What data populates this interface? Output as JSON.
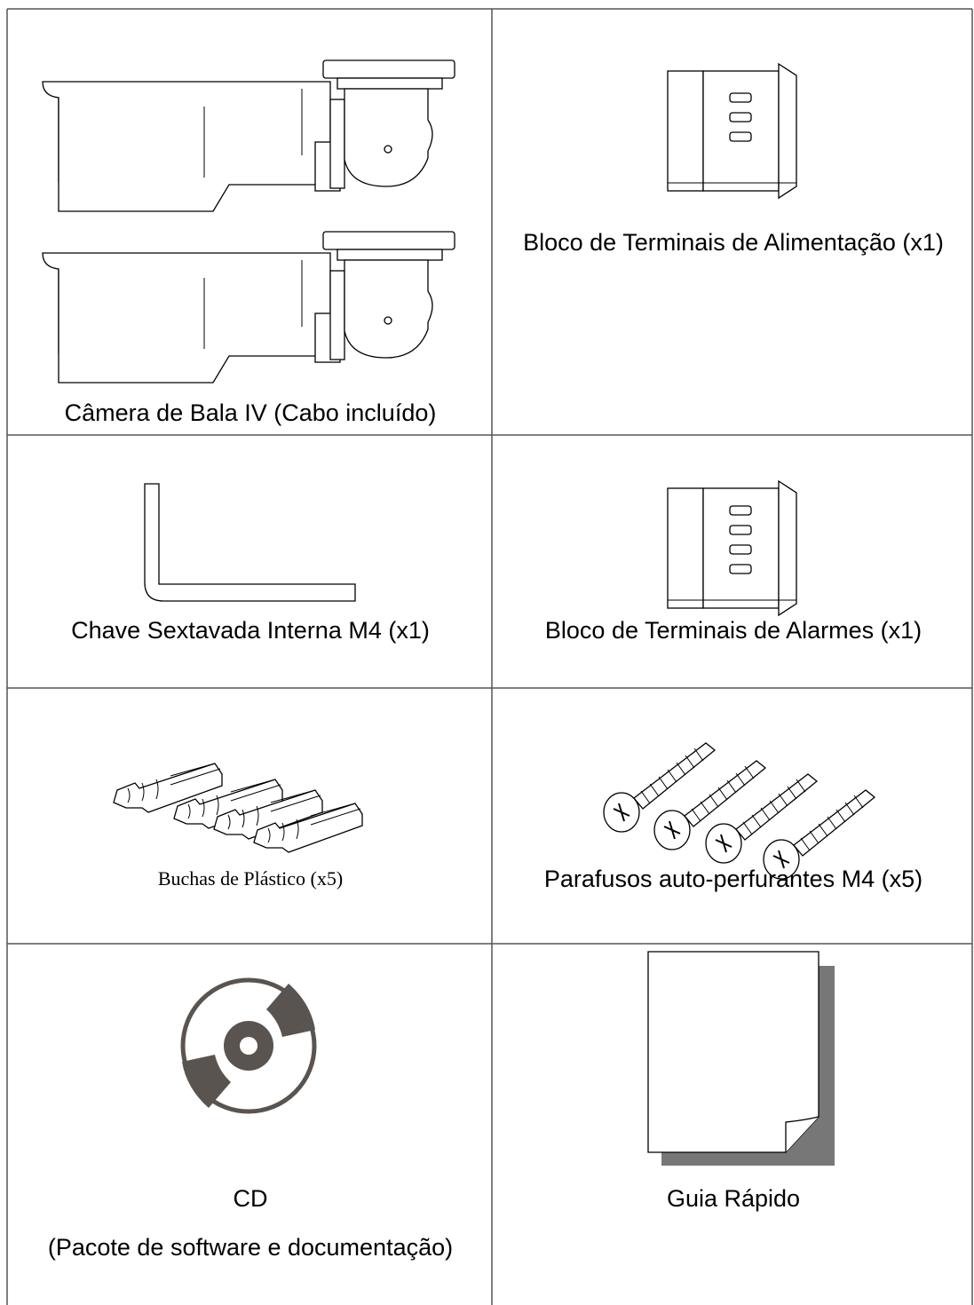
{
  "table": {
    "rows": [
      [
        {
          "lines": [
            "Câmera de Bala IV (Cabo incluído)"
          ]
        },
        {
          "lines": [
            "Bloco de Terminais de Alimentação (x1)"
          ]
        }
      ],
      [
        {
          "lines": [
            "Chave Sextavada Interna M4 (x1)"
          ]
        },
        {
          "lines": [
            "Bloco de Terminais de Alarmes (x1)"
          ]
        }
      ],
      [
        {
          "lines": [
            "Buchas de Plástico (x5)"
          ]
        },
        {
          "lines": [
            "Parafusos auto-perfurantes M4 (x5)"
          ]
        }
      ],
      [
        {
          "lines": [
            "CD",
            "(Pacote de software e documentação)"
          ]
        },
        {
          "lines": [
            "Guia Rápido"
          ]
        }
      ]
    ]
  }
}
